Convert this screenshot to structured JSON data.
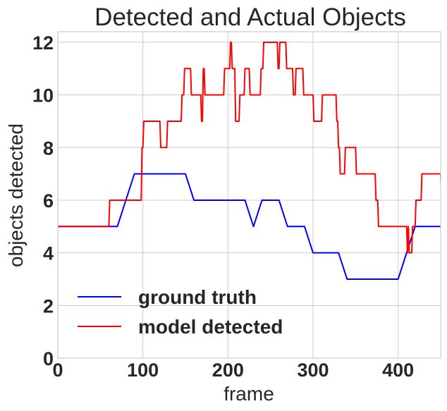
{
  "chart_data": {
    "type": "line",
    "title": "Detected and Actual Objects",
    "xlabel": "frame",
    "ylabel": "objects detected",
    "xlim": [
      0,
      450
    ],
    "ylim": [
      0,
      12.4
    ],
    "xticks": [
      0,
      100,
      200,
      300,
      400
    ],
    "yticks": [
      0,
      2,
      4,
      6,
      8,
      10,
      12
    ],
    "grid": true,
    "legend_position": "lower-left",
    "series": [
      {
        "name": "ground truth",
        "color": "#0000ff",
        "points": [
          [
            0,
            5
          ],
          [
            70,
            5
          ],
          [
            90,
            7
          ],
          [
            150,
            7
          ],
          [
            160,
            6
          ],
          [
            220,
            6
          ],
          [
            230,
            5
          ],
          [
            240,
            6
          ],
          [
            260,
            6
          ],
          [
            270,
            5
          ],
          [
            290,
            5
          ],
          [
            300,
            4
          ],
          [
            330,
            4
          ],
          [
            340,
            3
          ],
          [
            400,
            3
          ],
          [
            420,
            5
          ],
          [
            450,
            5
          ]
        ]
      },
      {
        "name": "model detected",
        "color": "#ff0000",
        "points": [
          [
            0,
            5
          ],
          [
            60,
            5
          ],
          [
            61,
            6
          ],
          [
            98,
            6
          ],
          [
            99,
            8
          ],
          [
            100,
            8
          ],
          [
            101,
            9
          ],
          [
            120,
            9
          ],
          [
            121,
            8
          ],
          [
            128,
            8
          ],
          [
            129,
            9
          ],
          [
            145,
            9
          ],
          [
            146,
            10
          ],
          [
            148,
            10
          ],
          [
            149,
            11
          ],
          [
            156,
            11
          ],
          [
            157,
            10
          ],
          [
            168,
            10
          ],
          [
            169,
            9
          ],
          [
            170,
            9
          ],
          [
            171,
            11
          ],
          [
            172,
            11
          ],
          [
            173,
            10
          ],
          [
            195,
            10
          ],
          [
            196,
            11
          ],
          [
            202,
            11
          ],
          [
            203,
            12
          ],
          [
            204,
            12
          ],
          [
            205,
            11
          ],
          [
            208,
            11
          ],
          [
            209,
            9
          ],
          [
            213,
            9
          ],
          [
            214,
            10
          ],
          [
            219,
            10
          ],
          [
            220,
            11
          ],
          [
            225,
            11
          ],
          [
            226,
            10
          ],
          [
            238,
            10
          ],
          [
            239,
            11
          ],
          [
            241,
            11
          ],
          [
            242,
            12
          ],
          [
            258,
            12
          ],
          [
            259,
            11
          ],
          [
            260,
            11
          ],
          [
            261,
            12
          ],
          [
            268,
            12
          ],
          [
            269,
            11
          ],
          [
            276,
            11
          ],
          [
            277,
            10
          ],
          [
            279,
            10
          ],
          [
            280,
            11
          ],
          [
            288,
            11
          ],
          [
            289,
            10
          ],
          [
            300,
            10
          ],
          [
            301,
            9
          ],
          [
            310,
            9
          ],
          [
            311,
            10
          ],
          [
            327,
            10
          ],
          [
            328,
            9
          ],
          [
            329,
            9
          ],
          [
            330,
            8
          ],
          [
            331,
            8
          ],
          [
            332,
            7
          ],
          [
            337,
            7
          ],
          [
            338,
            8
          ],
          [
            350,
            8
          ],
          [
            351,
            7
          ],
          [
            373,
            7
          ],
          [
            374,
            6
          ],
          [
            376,
            6
          ],
          [
            377,
            5
          ],
          [
            410,
            5
          ],
          [
            411,
            4
          ],
          [
            412,
            5
          ],
          [
            413,
            4
          ],
          [
            416,
            4
          ],
          [
            417,
            5
          ],
          [
            420,
            5
          ],
          [
            421,
            6
          ],
          [
            427,
            6
          ],
          [
            428,
            7
          ],
          [
            450,
            7
          ],
          [
            451,
            6
          ],
          [
            455,
            6
          ]
        ]
      }
    ]
  }
}
